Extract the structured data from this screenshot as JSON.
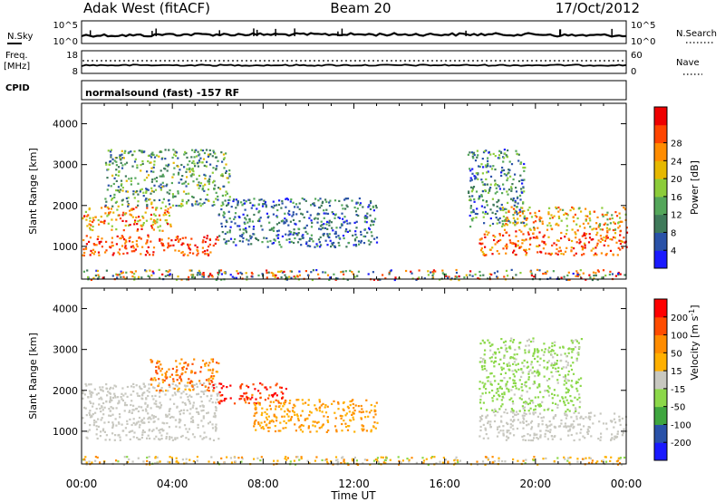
{
  "header": {
    "title": "Adak West (fitACF)",
    "beam": "Beam 20",
    "date": "17/Oct/2012"
  },
  "strip_nsky": {
    "left_label": "N.Sky",
    "left_ticks": [
      "10^5",
      "10^0"
    ],
    "right_label": "N.Search",
    "right_ticks": [
      "10^5",
      "10^0"
    ]
  },
  "strip_freq": {
    "left_label_top": "Freq.",
    "left_label_bottom": "[MHz]",
    "left_ticks": [
      "18",
      "8"
    ],
    "right_label": "Nave",
    "right_ticks": [
      "60",
      "0"
    ]
  },
  "strip_cpid": {
    "label": "CPID",
    "text": "normalsound (fast) -157 RF"
  },
  "colors": {
    "power_scale": [
      "#1a1aff",
      "#2a52a8",
      "#3f7a5a",
      "#54a65a",
      "#8ccc3a",
      "#e6b800",
      "#ff8c00",
      "#ff4500",
      "#ee0000"
    ],
    "velocity_scale": [
      "#ff0000",
      "#ff4c00",
      "#ff8c00",
      "#ffb000",
      "#c8c8c0",
      "#8cd84a",
      "#3fa63f",
      "#2a52a8",
      "#1a1aff"
    ],
    "ground_scatter": "#c8c8c0"
  },
  "chart_data": [
    {
      "type": "heatmap",
      "name": "power",
      "ylabel": "Slant Range [km]",
      "yticks": [
        "1000",
        "2000",
        "3000",
        "4000"
      ],
      "xticks": [
        "00:00",
        "04:00",
        "08:00",
        "12:00",
        "16:00",
        "20:00",
        "00:00"
      ],
      "ylim": [
        200,
        4500
      ],
      "colorbar": {
        "label": "Power [dB]",
        "ticks": [
          "4",
          "8",
          "12",
          "16",
          "20",
          "24",
          "28"
        ],
        "range": [
          0,
          30
        ]
      },
      "regions": [
        {
          "t0": 0.0,
          "t1": 6.0,
          "r0": 800,
          "r1": 1300,
          "v0": 20,
          "v1": 30
        },
        {
          "t0": 0.0,
          "t1": 4.0,
          "r0": 1400,
          "r1": 2000,
          "v0": 14,
          "v1": 28
        },
        {
          "t0": 1.0,
          "t1": 6.5,
          "r0": 2000,
          "r1": 3400,
          "v0": 4,
          "v1": 18
        },
        {
          "t0": 6.0,
          "t1": 13.0,
          "r0": 1000,
          "r1": 2200,
          "v0": 2,
          "v1": 12
        },
        {
          "t0": 17.5,
          "t1": 24.0,
          "r0": 800,
          "r1": 1400,
          "v0": 18,
          "v1": 30
        },
        {
          "t0": 18.5,
          "t1": 24.0,
          "r0": 1400,
          "r1": 2000,
          "v0": 12,
          "v1": 26
        },
        {
          "t0": 17.0,
          "t1": 19.5,
          "r0": 1500,
          "r1": 3400,
          "v0": 2,
          "v1": 16
        },
        {
          "t0": 0.0,
          "t1": 24.0,
          "r0": 200,
          "r1": 450,
          "v0": 2,
          "v1": 30
        }
      ]
    },
    {
      "type": "heatmap",
      "name": "velocity",
      "ylabel": "Slant Range [km]",
      "yticks": [
        "1000",
        "2000",
        "3000",
        "4000"
      ],
      "xticks": [
        "00:00",
        "04:00",
        "08:00",
        "12:00",
        "16:00",
        "20:00",
        "00:00"
      ],
      "xlabel": "Time UT",
      "ylim": [
        200,
        4500
      ],
      "colorbar": {
        "label": "Velocity [m s^-1]",
        "ticks": [
          "200",
          "100",
          "50",
          "15",
          "-15",
          "-50",
          "-100",
          "-200"
        ],
        "range": [
          -250,
          250
        ]
      },
      "regions": [
        {
          "t0": 0.0,
          "t1": 6.0,
          "r0": 800,
          "r1": 2200,
          "v0": -10,
          "v1": 10
        },
        {
          "t0": 6.0,
          "t1": 9.0,
          "r0": 1700,
          "r1": 2200,
          "v0": -250,
          "v1": -120
        },
        {
          "t0": 7.5,
          "t1": 13.0,
          "r0": 1000,
          "r1": 1800,
          "v0": -130,
          "v1": -40
        },
        {
          "t0": 3.0,
          "t1": 6.0,
          "r0": 2000,
          "r1": 2800,
          "v0": -200,
          "v1": -60
        },
        {
          "t0": 17.5,
          "t1": 24.0,
          "r0": 800,
          "r1": 1500,
          "v0": -10,
          "v1": 10
        },
        {
          "t0": 17.5,
          "t1": 22.0,
          "r0": 1500,
          "r1": 3300,
          "v0": 20,
          "v1": 60
        },
        {
          "t0": 0.0,
          "t1": 24.0,
          "r0": 200,
          "r1": 400,
          "v0": -120,
          "v1": 60
        }
      ]
    }
  ]
}
